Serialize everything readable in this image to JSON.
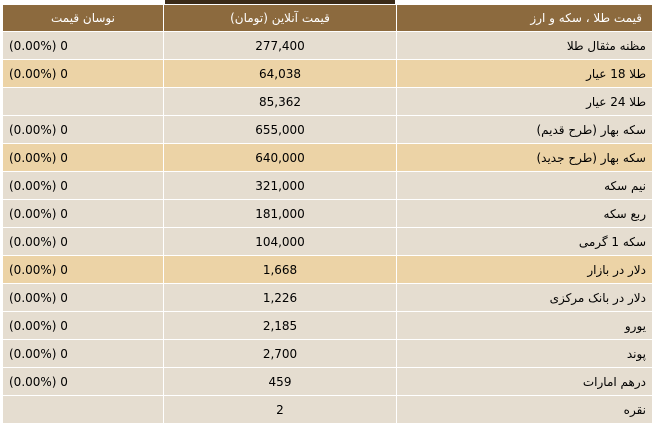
{
  "headers": {
    "change": "نوسان قیمت",
    "price": "قیمت آنلاین (تومان)",
    "name": "قیمت طلا ، سکه و ارز"
  },
  "rows": [
    {
      "name": "مظنه مثقال طلا",
      "price": "277,400",
      "change": "(0.00%) 0",
      "highlight": false
    },
    {
      "name": "طلا 18 عیار",
      "price": "64,038",
      "change": "(0.00%) 0",
      "highlight": true
    },
    {
      "name": "طلا 24 عیار",
      "price": "85,362",
      "change": "",
      "highlight": false
    },
    {
      "name": "سکه بهار (طرح قدیم)",
      "price": "655,000",
      "change": "(0.00%) 0",
      "highlight": false
    },
    {
      "name": "سکه بهار (طرح جدید)",
      "price": "640,000",
      "change": "(0.00%) 0",
      "highlight": true
    },
    {
      "name": "نیم سکه",
      "price": "321,000",
      "change": "(0.00%) 0",
      "highlight": false
    },
    {
      "name": "ربع سکه",
      "price": "181,000",
      "change": "(0.00%) 0",
      "highlight": false
    },
    {
      "name": "سکه 1 گرمی",
      "price": "104,000",
      "change": "(0.00%) 0",
      "highlight": false
    },
    {
      "name": "دلار در بازار",
      "price": "1,668",
      "change": "(0.00%) 0",
      "highlight": true
    },
    {
      "name": "دلار در بانک مرکزی",
      "price": "1,226",
      "change": "(0.00%) 0",
      "highlight": false
    },
    {
      "name": "یورو",
      "price": "2,185",
      "change": "(0.00%) 0",
      "highlight": false
    },
    {
      "name": "پوند",
      "price": "2,700",
      "change": "(0.00%) 0",
      "highlight": false
    },
    {
      "name": "درهم امارات",
      "price": "459",
      "change": "(0.00%) 0",
      "highlight": false
    },
    {
      "name": "نقره",
      "price": "2",
      "change": "",
      "highlight": false
    }
  ],
  "colors": {
    "header_bg": "#8c6a3e",
    "row_bg": "#e5ddd0",
    "row_highlight_bg": "#ecd3a6"
  }
}
